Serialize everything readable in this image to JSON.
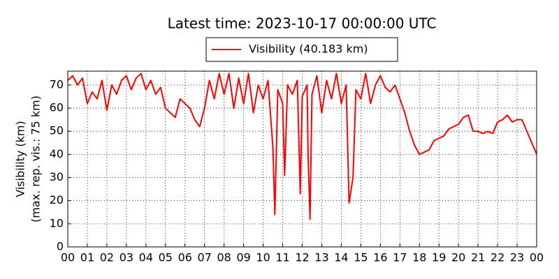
{
  "chart_data": {
    "type": "line",
    "title": "Latest time: 2023-10-17 00:00:00 UTC",
    "ylabel": [
      "Visibility (km)",
      "(max. rep. vis.: 75 km)"
    ],
    "x": [
      0,
      0.25,
      0.5,
      0.75,
      1,
      1.25,
      1.5,
      1.75,
      2,
      2.25,
      2.5,
      2.75,
      3,
      3.25,
      3.5,
      3.75,
      4,
      4.25,
      4.5,
      4.75,
      5,
      5.25,
      5.5,
      5.75,
      6,
      6.25,
      6.5,
      6.75,
      7,
      7.25,
      7.5,
      7.75,
      8,
      8.25,
      8.5,
      8.75,
      9,
      9.25,
      9.5,
      9.75,
      10,
      10.25,
      10.5,
      10.6,
      10.75,
      11,
      11.1,
      11.25,
      11.5,
      11.75,
      11.9,
      12,
      12.25,
      12.3,
      12.4,
      12.5,
      12.75,
      13,
      13.25,
      13.5,
      13.75,
      14,
      14.25,
      14.4,
      14.6,
      14.75,
      15,
      15.25,
      15.5,
      15.75,
      16,
      16.25,
      16.5,
      16.75,
      17,
      17.25,
      17.5,
      17.75,
      18,
      18.25,
      18.5,
      18.75,
      19,
      19.25,
      19.5,
      19.75,
      20,
      20.25,
      20.5,
      20.75,
      21,
      21.25,
      21.5,
      21.75,
      22,
      22.25,
      22.5,
      22.75,
      23,
      23.25,
      23.5,
      23.75,
      24
    ],
    "series": [
      {
        "name": "Visibility (40.183 km)",
        "color": "#ff0000",
        "values": [
          72,
          74,
          70,
          73,
          62,
          67,
          64,
          72,
          59,
          70,
          66,
          72,
          74,
          68,
          73,
          75,
          68,
          72,
          66,
          69,
          60,
          58,
          56,
          64,
          62,
          60,
          55,
          52,
          60,
          72,
          64,
          75,
          66,
          75,
          60,
          73,
          62,
          75,
          58,
          70,
          64,
          72,
          43,
          14,
          68,
          62,
          31,
          70,
          66,
          72,
          23,
          65,
          70,
          40,
          12,
          66,
          74,
          58,
          72,
          64,
          75,
          62,
          70,
          19,
          30,
          68,
          64,
          75,
          62,
          70,
          74,
          69,
          67,
          70,
          64,
          58,
          50,
          44,
          40,
          41,
          42,
          46,
          47,
          48,
          51,
          52,
          53,
          56,
          57,
          50,
          50,
          49,
          50,
          49,
          54,
          55,
          57,
          54,
          55,
          55,
          50,
          45,
          40.183
        ]
      }
    ],
    "xlim": [
      0,
      24
    ],
    "xticks": [
      {
        "value": 0,
        "label": "00"
      },
      {
        "value": 1,
        "label": "01"
      },
      {
        "value": 2,
        "label": "02"
      },
      {
        "value": 3,
        "label": "03"
      },
      {
        "value": 4,
        "label": "04"
      },
      {
        "value": 5,
        "label": "05"
      },
      {
        "value": 6,
        "label": "06"
      },
      {
        "value": 7,
        "label": "07"
      },
      {
        "value": 8,
        "label": "08"
      },
      {
        "value": 9,
        "label": "09"
      },
      {
        "value": 10,
        "label": "10"
      },
      {
        "value": 11,
        "label": "11"
      },
      {
        "value": 12,
        "label": "12"
      },
      {
        "value": 13,
        "label": "13"
      },
      {
        "value": 14,
        "label": "14"
      },
      {
        "value": 15,
        "label": "15"
      },
      {
        "value": 16,
        "label": "16"
      },
      {
        "value": 17,
        "label": "17"
      },
      {
        "value": 18,
        "label": "18"
      },
      {
        "value": 19,
        "label": "19"
      },
      {
        "value": 20,
        "label": "20"
      },
      {
        "value": 21,
        "label": "21"
      },
      {
        "value": 22,
        "label": "22"
      },
      {
        "value": 23,
        "label": "23"
      },
      {
        "value": 24,
        "label": "00"
      }
    ],
    "ylim": [
      0,
      76
    ],
    "yticks": [
      0,
      10,
      20,
      30,
      40,
      50,
      60,
      70
    ],
    "grid": true
  }
}
